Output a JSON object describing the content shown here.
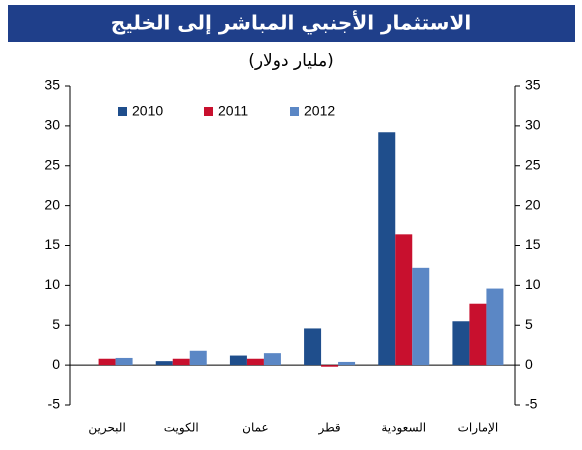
{
  "chart_data": {
    "type": "bar",
    "title": "الاستثمار الأجنبي المباشر إلى الخليج",
    "subtitle": "(مليار دولار)",
    "categories": [
      "البحرين",
      "الكويت",
      "عمان",
      "قطر",
      "السعودية",
      "الإمارات"
    ],
    "series": [
      {
        "name": "2010",
        "color": "#1f4e8c",
        "values": [
          0,
          0.5,
          1.2,
          4.6,
          29.2,
          5.5
        ]
      },
      {
        "name": "2011",
        "color": "#c8102e",
        "values": [
          0.8,
          0.8,
          0.8,
          -0.2,
          16.4,
          7.7
        ]
      },
      {
        "name": "2012",
        "color": "#5b87c5",
        "values": [
          0.9,
          1.8,
          1.5,
          0.4,
          12.2,
          9.6
        ]
      }
    ],
    "ylim": [
      -5,
      35
    ],
    "yticks": [
      -5,
      0,
      5,
      10,
      15,
      20,
      25,
      30,
      35
    ],
    "legend": "top-left"
  }
}
